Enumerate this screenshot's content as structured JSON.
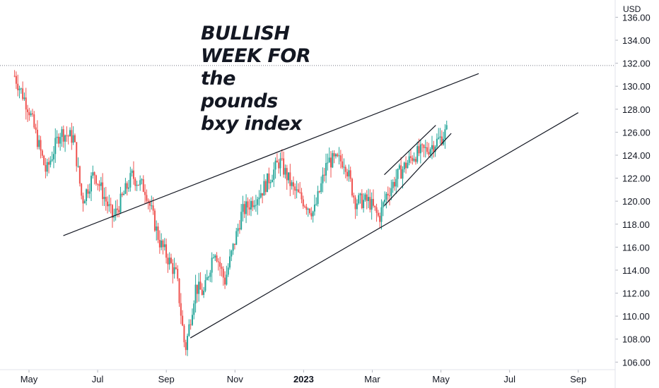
{
  "chart_data": {
    "type": "candlestick",
    "currency": "USD",
    "y_axis": {
      "ticks": [
        "106.00",
        "108.00",
        "110.00",
        "112.00",
        "114.00",
        "116.00",
        "118.00",
        "120.00",
        "122.00",
        "124.00",
        "126.00",
        "128.00",
        "130.00",
        "132.00",
        "134.00",
        "136.00"
      ],
      "range": [
        104.3,
        137.5
      ],
      "position": "right"
    },
    "x_axis": {
      "ticks": [
        {
          "label": "May",
          "month": 0,
          "bold": false
        },
        {
          "label": "Jul",
          "month": 2,
          "bold": false
        },
        {
          "label": "Sep",
          "month": 4,
          "bold": false
        },
        {
          "label": "Nov",
          "month": 6,
          "bold": false
        },
        {
          "label": "2023",
          "month": 8,
          "bold": true
        },
        {
          "label": "Mar",
          "month": 10,
          "bold": false
        },
        {
          "label": "May",
          "month": 12,
          "bold": false
        },
        {
          "label": "Jul",
          "month": 14,
          "bold": false
        },
        {
          "label": "Sep",
          "month": 16,
          "bold": false
        }
      ]
    },
    "reference_level": 131.8,
    "key_points": [
      {
        "month": -0.42,
        "price": 130.9
      },
      {
        "month": 0.0,
        "price": 128.0
      },
      {
        "month": 0.5,
        "price": 122.5
      },
      {
        "month": 0.9,
        "price": 126.0
      },
      {
        "month": 1.3,
        "price": 125.5
      },
      {
        "month": 1.55,
        "price": 120.0
      },
      {
        "month": 1.9,
        "price": 122.5
      },
      {
        "month": 2.45,
        "price": 118.5
      },
      {
        "month": 3.0,
        "price": 122.2
      },
      {
        "month": 3.4,
        "price": 121.0
      },
      {
        "month": 3.8,
        "price": 116.5
      },
      {
        "month": 4.3,
        "price": 113.5
      },
      {
        "month": 4.55,
        "price": 107.0
      },
      {
        "month": 4.85,
        "price": 112.5
      },
      {
        "month": 5.1,
        "price": 112.0
      },
      {
        "month": 5.4,
        "price": 116.0
      },
      {
        "month": 5.7,
        "price": 113.0
      },
      {
        "month": 6.2,
        "price": 119.0
      },
      {
        "month": 6.8,
        "price": 121.0
      },
      {
        "month": 7.3,
        "price": 123.5
      },
      {
        "month": 7.7,
        "price": 121.0
      },
      {
        "month": 8.3,
        "price": 119.0
      },
      {
        "month": 8.7,
        "price": 123.5
      },
      {
        "month": 9.2,
        "price": 123.5
      },
      {
        "month": 9.5,
        "price": 120.0
      },
      {
        "month": 9.9,
        "price": 120.0
      },
      {
        "month": 10.2,
        "price": 118.5
      },
      {
        "month": 10.4,
        "price": 120.5
      },
      {
        "month": 10.8,
        "price": 122.5
      },
      {
        "month": 11.2,
        "price": 124.0
      },
      {
        "month": 11.6,
        "price": 124.5
      },
      {
        "month": 12.0,
        "price": 125.5
      },
      {
        "month": 12.2,
        "price": 126.2
      }
    ],
    "trendlines": [
      {
        "from": {
          "month": 1.0,
          "price": 117.0
        },
        "to": {
          "month": 13.1,
          "price": 131.1
        }
      },
      {
        "from": {
          "month": 4.7,
          "price": 108.1
        },
        "to": {
          "month": 16.0,
          "price": 127.7
        }
      },
      {
        "from": {
          "month": 10.35,
          "price": 122.3
        },
        "to": {
          "month": 11.85,
          "price": 126.6
        }
      },
      {
        "from": {
          "month": 10.35,
          "price": 119.6
        },
        "to": {
          "month": 12.3,
          "price": 125.9
        }
      }
    ],
    "colors": {
      "up": "#26a69a",
      "down": "#ef5350",
      "trendline": "#131722",
      "grid_reference": "#787b86"
    }
  },
  "annotation": {
    "lines": [
      "BULLISH",
      "WEEK FOR",
      "the",
      "pounds",
      "bxy index"
    ]
  }
}
